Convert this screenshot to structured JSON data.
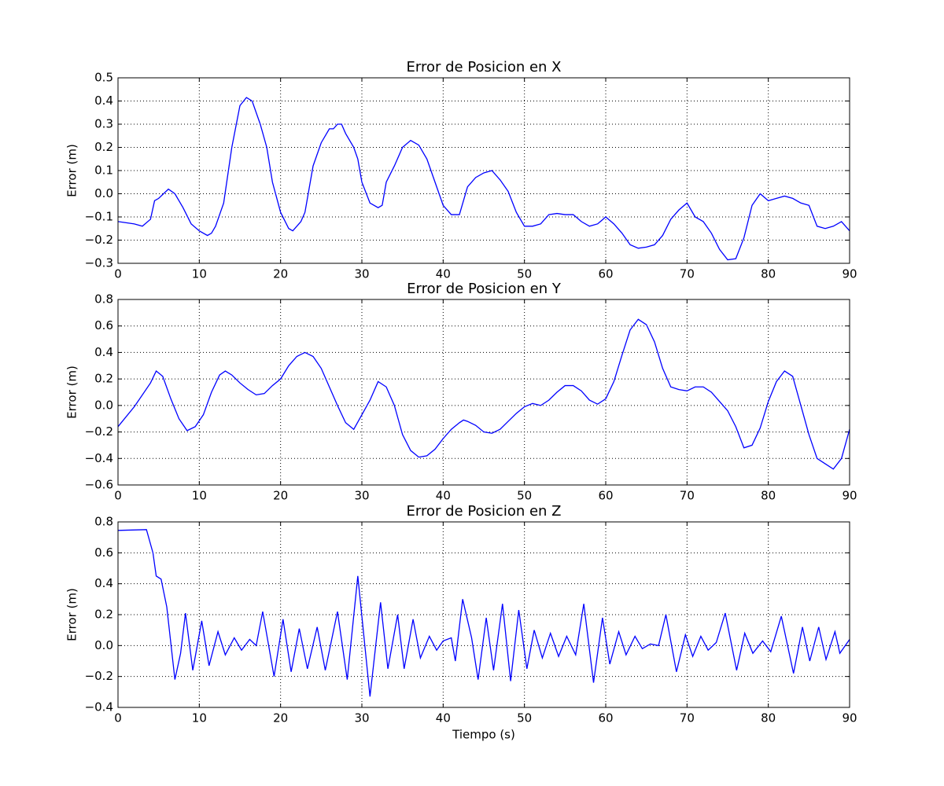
{
  "chart_data": [
    {
      "type": "line",
      "title": "Error de Posicion en X",
      "ylabel": "Error (m)",
      "color": "#0000ff",
      "grid": true,
      "xlim": [
        0,
        90
      ],
      "xticks": [
        0,
        10,
        20,
        30,
        40,
        50,
        60,
        70,
        80,
        90
      ],
      "ylim": [
        -0.3,
        0.5
      ],
      "yticks": [
        {
          "value": -0.3,
          "label": "−0.3"
        },
        {
          "value": -0.2,
          "label": "−0.2"
        },
        {
          "value": -0.1,
          "label": "−0.1"
        },
        {
          "value": 0,
          "label": "0.0"
        },
        0.1,
        0.2,
        0.3,
        0.4,
        0.5
      ],
      "x": [
        0,
        2,
        3,
        4,
        4.5,
        5,
        6.2,
        7,
        8,
        9,
        10,
        11,
        11.5,
        12,
        13,
        14,
        15,
        15.8,
        16.5,
        17.5,
        18.3,
        19,
        20,
        21,
        21.5,
        22.5,
        23,
        24,
        25,
        26,
        26.5,
        27,
        27.5,
        28,
        29,
        29.5,
        30,
        31,
        32,
        32.5,
        33,
        34,
        35,
        36,
        37,
        38,
        39,
        40,
        41,
        42,
        43,
        44,
        45,
        46,
        47,
        48,
        49,
        50,
        51,
        52,
        53,
        54,
        55,
        56,
        57,
        58,
        59,
        60,
        61,
        62,
        63,
        64,
        65,
        66,
        67,
        68,
        69,
        70,
        71,
        72,
        73,
        74,
        75,
        76,
        77,
        78,
        79,
        80,
        81,
        82,
        83,
        84,
        85,
        86,
        87,
        88,
        89,
        90
      ],
      "values": [
        -0.12,
        -0.13,
        -0.14,
        -0.11,
        -0.03,
        -0.02,
        0.02,
        0,
        -0.06,
        -0.13,
        -0.16,
        -0.18,
        -0.17,
        -0.14,
        -0.04,
        0.2,
        0.38,
        0.415,
        0.4,
        0.3,
        0.2,
        0.05,
        -0.08,
        -0.15,
        -0.16,
        -0.12,
        -0.08,
        0.12,
        0.22,
        0.28,
        0.28,
        0.3,
        0.3,
        0.26,
        0.2,
        0.15,
        0.05,
        -0.04,
        -0.06,
        -0.05,
        0.05,
        0.12,
        0.2,
        0.23,
        0.21,
        0.15,
        0.05,
        -0.05,
        -0.09,
        -0.09,
        0.03,
        0.07,
        0.09,
        0.1,
        0.06,
        0.01,
        -0.08,
        -0.14,
        -0.14,
        -0.13,
        -0.09,
        -0.085,
        -0.09,
        -0.09,
        -0.12,
        -0.14,
        -0.13,
        -0.1,
        -0.13,
        -0.17,
        -0.22,
        -0.235,
        -0.23,
        -0.22,
        -0.18,
        -0.11,
        -0.07,
        -0.04,
        -0.1,
        -0.12,
        -0.17,
        -0.24,
        -0.285,
        -0.28,
        -0.19,
        -0.05,
        0,
        -0.03,
        -0.02,
        -0.01,
        -0.02,
        -0.04,
        -0.05,
        -0.14,
        -0.15,
        -0.14,
        -0.12,
        -0.16
      ]
    },
    {
      "type": "line",
      "title": "Error de Posicion en Y",
      "ylabel": "Error (m)",
      "color": "#0000ff",
      "grid": true,
      "xlim": [
        0,
        90
      ],
      "xticks": [
        0,
        10,
        20,
        30,
        40,
        50,
        60,
        70,
        80,
        90
      ],
      "ylim": [
        -0.6,
        0.8
      ],
      "yticks": [
        {
          "value": -0.6,
          "label": "−0.6"
        },
        {
          "value": -0.4,
          "label": "−0.4"
        },
        {
          "value": -0.2,
          "label": "−0.2"
        },
        {
          "value": 0,
          "label": "0.0"
        },
        0.2,
        0.4,
        0.6,
        0.8
      ],
      "x": [
        0,
        2,
        4,
        4.7,
        5.5,
        6.5,
        7.5,
        8.5,
        9.5,
        10.5,
        11.5,
        12.5,
        13.2,
        14,
        15,
        16,
        17,
        18,
        19,
        20,
        21,
        22,
        23,
        24,
        25,
        26,
        27,
        28,
        29,
        30,
        31,
        32,
        33,
        34,
        35,
        36,
        37,
        38,
        39,
        40,
        41,
        42,
        42.5,
        43,
        44,
        45,
        46,
        47,
        48,
        49,
        50,
        51,
        52,
        53,
        54,
        55,
        56,
        57,
        58,
        59,
        60,
        61,
        62,
        63,
        64,
        65,
        66,
        67,
        68,
        69,
        70,
        71,
        72,
        73,
        74,
        75,
        76,
        77,
        78,
        79,
        80,
        81,
        82,
        83,
        84,
        85,
        86,
        87,
        88,
        89,
        90
      ],
      "values": [
        -0.16,
        -0.01,
        0.17,
        0.26,
        0.22,
        0.05,
        -0.1,
        -0.19,
        -0.16,
        -0.07,
        0.1,
        0.23,
        0.26,
        0.23,
        0.17,
        0.12,
        0.08,
        0.09,
        0.15,
        0.2,
        0.3,
        0.37,
        0.4,
        0.37,
        0.28,
        0.14,
        0,
        -0.13,
        -0.18,
        -0.07,
        0.04,
        0.18,
        0.14,
        0,
        -0.22,
        -0.34,
        -0.39,
        -0.38,
        -0.33,
        -0.25,
        -0.18,
        -0.13,
        -0.11,
        -0.12,
        -0.15,
        -0.2,
        -0.21,
        -0.18,
        -0.12,
        -0.06,
        -0.01,
        0.015,
        0,
        0.04,
        0.1,
        0.15,
        0.15,
        0.11,
        0.04,
        0.01,
        0.05,
        0.18,
        0.38,
        0.57,
        0.65,
        0.61,
        0.48,
        0.28,
        0.14,
        0.12,
        0.11,
        0.14,
        0.14,
        0.1,
        0.03,
        -0.04,
        -0.16,
        -0.32,
        -0.3,
        -0.17,
        0.03,
        0.18,
        0.26,
        0.22,
        0,
        -0.22,
        -0.4,
        -0.44,
        -0.48,
        -0.4,
        -0.18
      ]
    },
    {
      "type": "line",
      "title": "Error de Posicion en Z",
      "ylabel": "Error (m)",
      "xlabel": "Tiempo (s)",
      "color": "#0000ff",
      "grid": true,
      "xlim": [
        0,
        90
      ],
      "xticks": [
        0,
        10,
        20,
        30,
        40,
        50,
        60,
        70,
        80,
        90
      ],
      "ylim": [
        -0.4,
        0.8
      ],
      "yticks": [
        {
          "value": -0.4,
          "label": "−0.4"
        },
        {
          "value": -0.2,
          "label": "−0.2"
        },
        {
          "value": 0,
          "label": "0.0"
        },
        0.2,
        0.4,
        0.6,
        0.8
      ],
      "x": [
        0,
        3.5,
        4.3,
        4.7,
        5.3,
        6,
        7,
        7.7,
        8.3,
        9.2,
        10.3,
        11.2,
        12.3,
        13.2,
        14.3,
        15.2,
        16.2,
        17,
        17.8,
        19.2,
        20.3,
        21.3,
        22.3,
        23.3,
        24.5,
        25.5,
        27,
        28.2,
        29.5,
        31,
        32.3,
        33.2,
        34.4,
        35.2,
        36.3,
        37.2,
        38.3,
        39.2,
        40,
        41,
        41.5,
        42.4,
        43.5,
        44.3,
        45.3,
        46.2,
        47.3,
        48.3,
        49.3,
        50.3,
        51.2,
        52.2,
        53.2,
        54.2,
        55.2,
        56.3,
        57.3,
        58.5,
        59.6,
        60.5,
        61.6,
        62.5,
        63.6,
        64.5,
        65.5,
        66.5,
        67.4,
        68.7,
        69.8,
        70.7,
        71.7,
        72.6,
        73.6,
        74.7,
        76.1,
        77.1,
        78.1,
        79.3,
        80.3,
        81.6,
        83.1,
        84.2,
        85.1,
        86.2,
        87.1,
        88.2,
        88.8,
        90
      ],
      "values": [
        0.745,
        0.75,
        0.6,
        0.45,
        0.43,
        0.25,
        -0.22,
        -0.05,
        0.21,
        -0.16,
        0.16,
        -0.13,
        0.09,
        -0.06,
        0.05,
        -0.03,
        0.04,
        0,
        0.22,
        -0.2,
        0.17,
        -0.17,
        0.11,
        -0.15,
        0.12,
        -0.16,
        0.22,
        -0.22,
        0.45,
        -0.33,
        0.28,
        -0.15,
        0.2,
        -0.15,
        0.17,
        -0.08,
        0.06,
        -0.03,
        0.03,
        0.05,
        -0.1,
        0.3,
        0.05,
        -0.22,
        0.18,
        -0.16,
        0.27,
        -0.23,
        0.23,
        -0.15,
        0.1,
        -0.08,
        0.08,
        -0.07,
        0.06,
        -0.06,
        0.27,
        -0.24,
        0.18,
        -0.12,
        0.09,
        -0.06,
        0.06,
        -0.02,
        0.01,
        0,
        0.2,
        -0.17,
        0.07,
        -0.07,
        0.06,
        -0.03,
        0.02,
        0.21,
        -0.16,
        0.08,
        -0.05,
        0.03,
        -0.04,
        0.19,
        -0.18,
        0.12,
        -0.1,
        0.12,
        -0.09,
        0.09,
        -0.05,
        0.04
      ]
    }
  ]
}
